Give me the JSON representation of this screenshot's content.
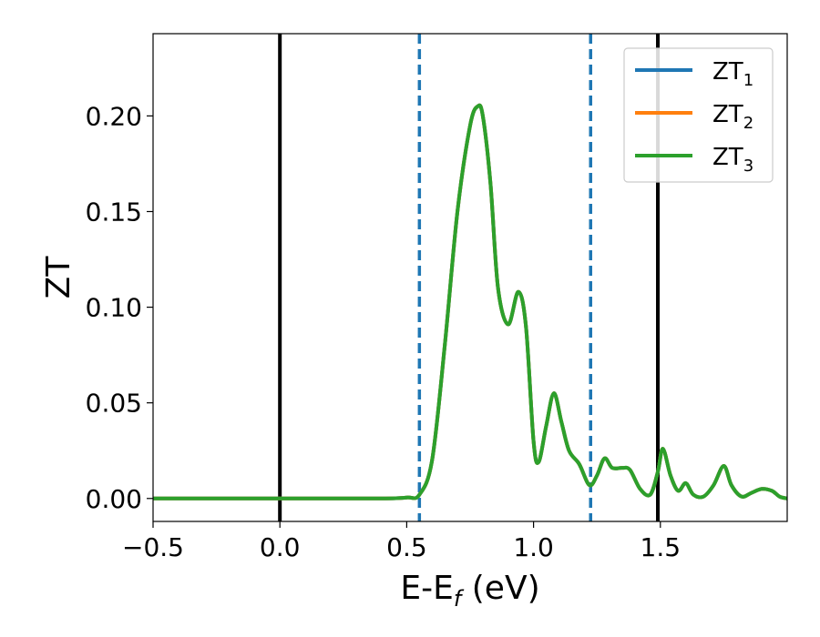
{
  "chart_data": {
    "type": "line",
    "xlabel": {
      "main": "E-E",
      "sub": "f",
      "unit": " (eV)"
    },
    "ylabel": "ZT",
    "xlim": [
      -0.5,
      2.0
    ],
    "ylim": [
      -0.012,
      0.243
    ],
    "xticks": [
      -0.5,
      0.0,
      0.5,
      1.0,
      1.5
    ],
    "xtick_labels": [
      "−0.5",
      "0.0",
      "0.5",
      "1.0",
      "1.5"
    ],
    "yticks": [
      0.0,
      0.05,
      0.1,
      0.15,
      0.2
    ],
    "ytick_labels": [
      "0.00",
      "0.05",
      "0.10",
      "0.15",
      "0.20"
    ],
    "grid": false,
    "legend_position": "top-right",
    "vlines": [
      {
        "x": 0.0,
        "style": "solid",
        "color": "#000000"
      },
      {
        "x": 0.55,
        "style": "dashed",
        "color": "#1f77b4"
      },
      {
        "x": 1.225,
        "style": "dashed",
        "color": "#1f77b4"
      },
      {
        "x": 1.49,
        "style": "solid",
        "color": "#000000"
      }
    ],
    "x": [
      -0.5,
      0.0,
      0.4,
      0.5,
      0.55,
      0.6,
      0.65,
      0.7,
      0.75,
      0.78,
      0.8,
      0.83,
      0.86,
      0.9,
      0.94,
      0.97,
      1.0,
      1.02,
      1.05,
      1.08,
      1.11,
      1.14,
      1.18,
      1.22,
      1.25,
      1.28,
      1.31,
      1.35,
      1.38,
      1.42,
      1.46,
      1.49,
      1.51,
      1.54,
      1.57,
      1.6,
      1.63,
      1.67,
      1.71,
      1.75,
      1.78,
      1.82,
      1.86,
      1.9,
      1.94,
      1.97,
      2.0
    ],
    "series": [
      {
        "name": "ZT",
        "sub": "1",
        "color": "#1f77b4",
        "values": [
          0.0,
          0.0,
          0.0,
          0.0005,
          0.002,
          0.02,
          0.08,
          0.15,
          0.195,
          0.205,
          0.2,
          0.165,
          0.11,
          0.091,
          0.108,
          0.09,
          0.03,
          0.019,
          0.038,
          0.055,
          0.04,
          0.025,
          0.018,
          0.007,
          0.012,
          0.021,
          0.016,
          0.016,
          0.015,
          0.005,
          0.002,
          0.014,
          0.026,
          0.012,
          0.004,
          0.008,
          0.002,
          0.001,
          0.007,
          0.017,
          0.007,
          0.001,
          0.003,
          0.005,
          0.004,
          0.001,
          0.0
        ]
      },
      {
        "name": "ZT",
        "sub": "2",
        "color": "#ff7f0e",
        "values": [
          0.0,
          0.0,
          0.0,
          0.0005,
          0.002,
          0.02,
          0.08,
          0.15,
          0.195,
          0.205,
          0.2,
          0.165,
          0.11,
          0.091,
          0.108,
          0.09,
          0.03,
          0.019,
          0.038,
          0.055,
          0.04,
          0.025,
          0.018,
          0.007,
          0.012,
          0.021,
          0.016,
          0.016,
          0.015,
          0.005,
          0.002,
          0.014,
          0.026,
          0.012,
          0.004,
          0.008,
          0.002,
          0.001,
          0.007,
          0.017,
          0.007,
          0.001,
          0.003,
          0.005,
          0.004,
          0.001,
          0.0
        ]
      },
      {
        "name": "ZT",
        "sub": "3",
        "color": "#2ca02c",
        "values": [
          0.0,
          0.0,
          0.0,
          0.0005,
          0.002,
          0.02,
          0.08,
          0.15,
          0.195,
          0.205,
          0.2,
          0.165,
          0.11,
          0.091,
          0.108,
          0.09,
          0.03,
          0.019,
          0.038,
          0.055,
          0.04,
          0.025,
          0.018,
          0.007,
          0.012,
          0.021,
          0.016,
          0.016,
          0.015,
          0.005,
          0.002,
          0.014,
          0.026,
          0.012,
          0.004,
          0.008,
          0.002,
          0.001,
          0.007,
          0.017,
          0.007,
          0.001,
          0.003,
          0.005,
          0.004,
          0.001,
          0.0
        ]
      }
    ]
  }
}
